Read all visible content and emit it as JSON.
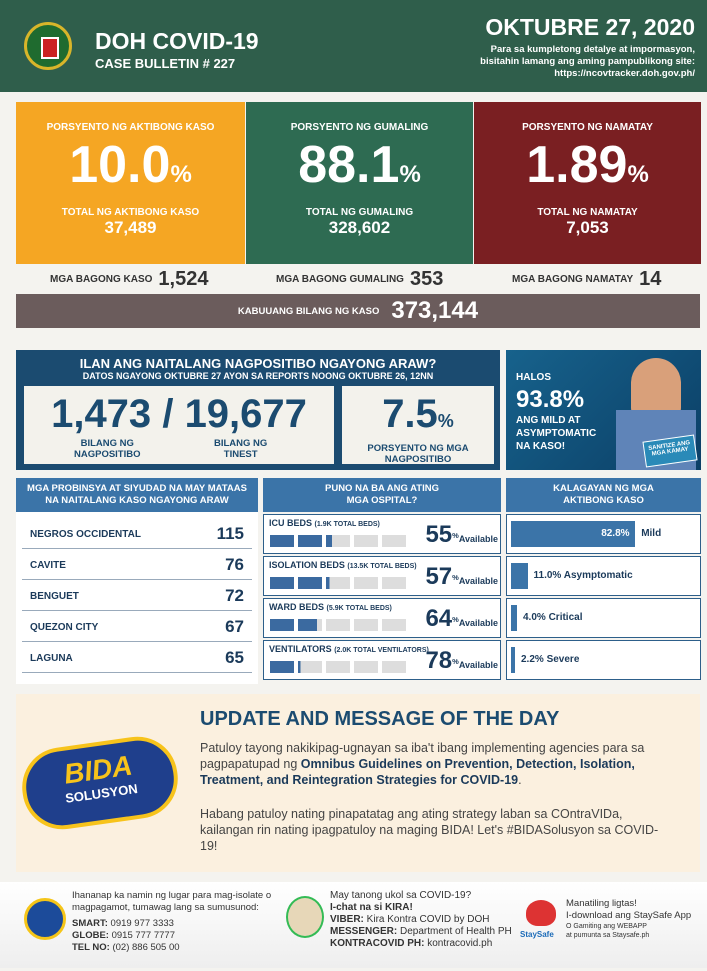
{
  "header": {
    "title": "DOH COVID-19",
    "bulletin": "CASE BULLETIN # 227",
    "date": "OKTUBRE 27, 2020",
    "info1": "Para sa kumpletong detalye at impormasyon,",
    "info2": "bisitahin lamang ang aming pampublikong site:",
    "url": "https://ncovtracker.doh.gov.ph/"
  },
  "cards": [
    {
      "label": "PORSYENTO NG AKTIBONG KASO",
      "pct": "10.0",
      "unit": "%",
      "total_label": "TOTAL NG AKTIBONG KASO",
      "total": "37,489",
      "new_label": "MGA BAGONG KASO",
      "new": "1,524",
      "color": "#f5a623"
    },
    {
      "label": "PORSYENTO NG GUMALING",
      "pct": "88.1",
      "unit": "%",
      "total_label": "TOTAL NG GUMALING",
      "total": "328,602",
      "new_label": "MGA BAGONG GUMALING",
      "new": "353",
      "color": "#2e6b52"
    },
    {
      "label": "PORSYENTO NG NAMATAY",
      "pct": "1.89",
      "unit": "%",
      "total_label": "TOTAL NG NAMATAY",
      "total": "7,053",
      "new_label": "MGA BAGONG NAMATAY",
      "new": "14",
      "color": "#7a1f22"
    }
  ],
  "total": {
    "label": "KABUUANG BILANG NG KASO",
    "value": "373,144"
  },
  "positivity": {
    "title": "ILAN ANG NAITALANG NAGPOSITIBO NGAYONG ARAW?",
    "subtitle": "DATOS NGAYONG OKTUBRE 27 AYON SA REPORTS NOONG OKTUBRE 26, 12NN",
    "positive": "1,473",
    "slash": "/",
    "tested": "19,677",
    "positive_label1": "BILANG NG",
    "positive_label2": "NAGPOSITIBO",
    "tested_label1": "BILANG NG",
    "tested_label2": "TINEST",
    "rate": "7.5",
    "unit": "%",
    "rate_label1": "PORSYENTO NG MGA",
    "rate_label2": "NAGPOSITIBO"
  },
  "halos": {
    "l1": "HALOS",
    "pct": "93.8%",
    "l2": "ANG MILD AT",
    "l3": "ASYMPTOMATIC",
    "l4": "NA KASO!",
    "sign": "SANITIZE ANG MGA KAMAY"
  },
  "provinces": {
    "title1": "MGA PROBINSYA AT SIYUDAD NA MAY MATAAS",
    "title2": "NA NAITALANG KASO NGAYONG ARAW",
    "rows": [
      {
        "name": "NEGROS OCCIDENTAL",
        "value": "115"
      },
      {
        "name": "CAVITE",
        "value": "76"
      },
      {
        "name": "BENGUET",
        "value": "72"
      },
      {
        "name": "QUEZON CITY",
        "value": "67"
      },
      {
        "name": "LAGUNA",
        "value": "65"
      }
    ]
  },
  "hospitals": {
    "title1": "PUNO NA BA ANG ATING",
    "title2": "MGA OSPITAL?",
    "available": "Available",
    "unit": "%",
    "rows": [
      {
        "name": "ICU BEDS",
        "total": "(1.9K TOTAL BEDS)",
        "value": "55",
        "used": 0.45
      },
      {
        "name": "ISOLATION BEDS",
        "total": "(13.5K TOTAL BEDS)",
        "value": "57",
        "used": 0.43
      },
      {
        "name": "WARD BEDS",
        "total": "(5.9K TOTAL BEDS)",
        "value": "64",
        "used": 0.36
      },
      {
        "name": "VENTILATORS",
        "total": "(2.0K TOTAL VENTILATORS)",
        "value": "78",
        "used": 0.22
      }
    ]
  },
  "active": {
    "title1": "KALAGAYAN NG MGA",
    "title2": "AKTIBONG KASO",
    "rows": [
      {
        "pct": "82.8%",
        "label": "Mild",
        "value": 82.8
      },
      {
        "pct": "11.0%",
        "label": "Asymptomatic",
        "value": 11.0
      },
      {
        "pct": "4.0%",
        "label": "Critical",
        "value": 4.0
      },
      {
        "pct": "2.2%",
        "label": "Severe",
        "value": 2.2
      }
    ]
  },
  "update": {
    "logo": "BIDA SOLUSYON sa COVID-19",
    "title": "UPDATE AND MESSAGE OF THE DAY",
    "p1a": "Patuloy tayong nakikipag-ugnayan sa iba't ibang implementing agencies para sa pagpapatupad ng ",
    "p1b": "Omnibus Guidelines on Prevention, Detection, Isolation, Treatment, and Reintegration Strategies for COVID-19",
    "p1c": ".",
    "p2": "Habang patuloy nating pinapatatag ang ating strategy laban sa COntraVIDa, kailangan rin nating ipagpatuloy na maging BIDA! Let's #BIDASolusyon sa COVID-19!"
  },
  "footer": {
    "c1": {
      "l1": "Ihananap ka namin ng lugar para mag-isolate o",
      "l2": "magpagamot, tumawag lang sa sumusunod:",
      "smart_k": "SMART:",
      "smart": " 0919 977 3333",
      "globe_k": "GLOBE:",
      "globe": " 0915 777 7777",
      "tel_k": "TEL NO:",
      "tel": " (02) 886 505 00"
    },
    "c2": {
      "l1": "May tanong ukol sa COVID-19?",
      "l2": "I-chat na si KIRA!",
      "viber_k": "VIBER:",
      "viber": " Kira Kontra COVID by DOH",
      "msg_k": "MESSENGER:",
      "msg": " Department of Health PH",
      "kc_k": "KONTRACOVID PH:",
      "kc": " kontracovid.ph"
    },
    "c3": {
      "logo": "StaySafe",
      "l1": "Manatiling ligtas!",
      "l2": "I-download ang StaySafe App",
      "l3": "O Gamiting ang WEBAPP",
      "l4": "at pumunta sa Staysafe.ph"
    }
  }
}
